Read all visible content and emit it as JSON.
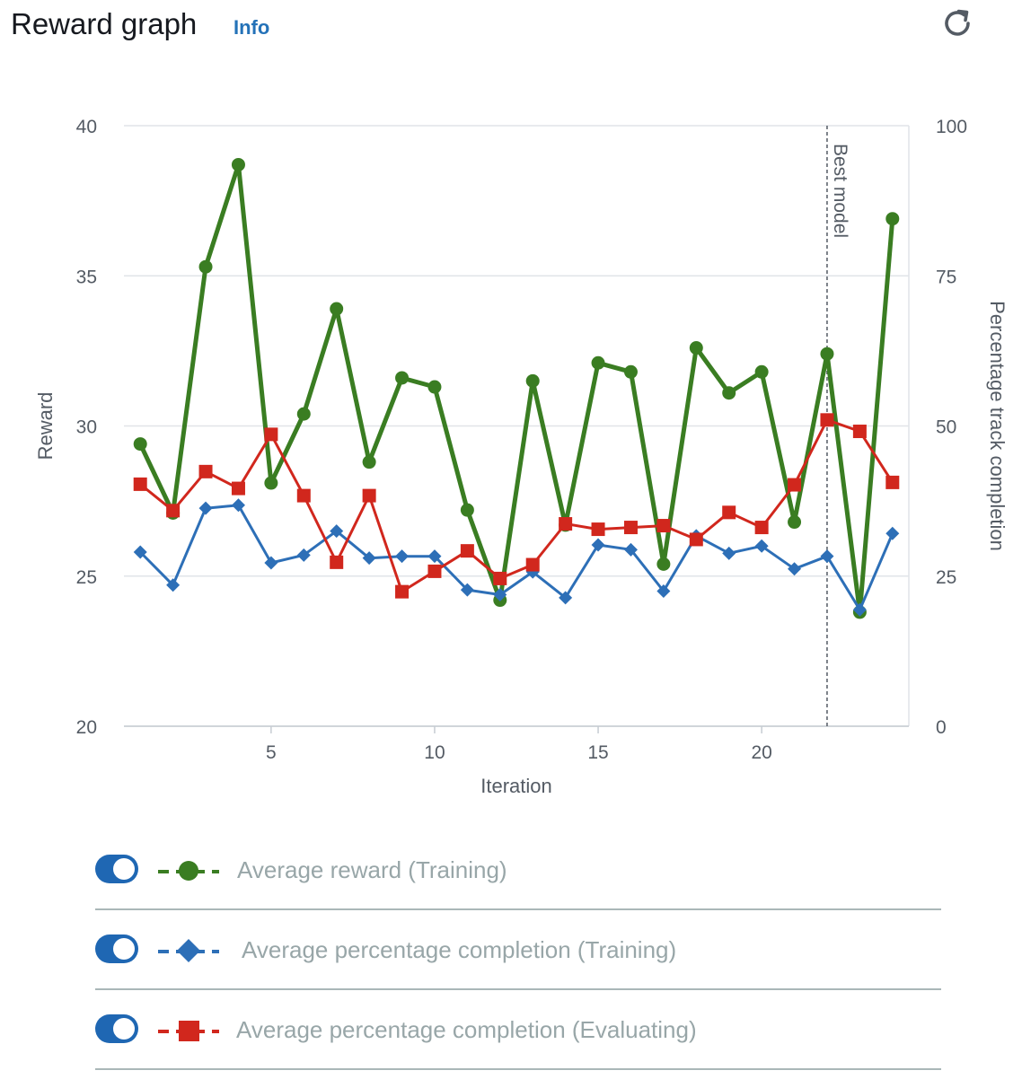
{
  "header": {
    "title": "Reward graph",
    "info_label": "Info",
    "refresh_icon": "refresh-icon"
  },
  "chart_data": {
    "type": "line",
    "xlabel": "Iteration",
    "ylabel_left": "Reward",
    "ylabel_right": "Percentage track completion",
    "x": [
      1,
      2,
      3,
      4,
      5,
      6,
      7,
      8,
      9,
      10,
      11,
      12,
      13,
      14,
      15,
      16,
      17,
      18,
      19,
      20,
      21,
      22,
      23,
      24
    ],
    "x_ticks": [
      5,
      10,
      15,
      20
    ],
    "xlim": [
      0.5,
      24.5
    ],
    "ylim_left": [
      20,
      40
    ],
    "yticks_left": [
      20,
      25,
      30,
      35,
      40
    ],
    "ylim_right": [
      0,
      100
    ],
    "yticks_right": [
      0,
      25,
      50,
      75,
      100
    ],
    "grid": true,
    "annotation": {
      "label": "Best model",
      "x": 22
    },
    "series": [
      {
        "name": "Average reward (Training)",
        "axis": "left",
        "color": "#3a7d22",
        "marker": "circle",
        "values": [
          29.4,
          27.1,
          35.3,
          38.7,
          28.1,
          30.4,
          33.9,
          28.8,
          31.6,
          31.3,
          27.2,
          24.2,
          31.5,
          26.7,
          32.1,
          31.8,
          25.4,
          32.6,
          31.1,
          31.8,
          26.8,
          32.4,
          23.8,
          36.9
        ]
      },
      {
        "name": "Average percentage completion (Training)",
        "axis": "right",
        "color": "#2d6fb7",
        "marker": "diamond",
        "values": [
          29,
          23.5,
          36.3,
          36.8,
          27.2,
          28.5,
          32.5,
          28,
          28.3,
          28.3,
          22.7,
          21.9,
          25.7,
          21.4,
          30.2,
          29.4,
          22.5,
          31.7,
          28.8,
          30,
          26.2,
          28.3,
          19.4,
          32.1
        ]
      },
      {
        "name": "Average percentage completion (Evaluating)",
        "axis": "right",
        "color": "#d1271d",
        "marker": "square",
        "values": [
          40.3,
          35.9,
          42.4,
          39.6,
          48.6,
          38.4,
          27.3,
          38.4,
          22.4,
          25.8,
          29.2,
          24.6,
          26.9,
          33.7,
          32.8,
          33.1,
          33.4,
          31.1,
          35.6,
          33.1,
          40.2,
          51,
          49.1,
          40.6
        ]
      }
    ]
  },
  "legend": {
    "items": [
      {
        "label": "Average reward (Training)",
        "marker_icon": "green-circle-line-icon"
      },
      {
        "label": "Average percentage completion (Training)",
        "marker_icon": "blue-diamond-line-icon"
      },
      {
        "label": "Average percentage completion (Evaluating)",
        "marker_icon": "red-square-line-icon"
      }
    ]
  }
}
